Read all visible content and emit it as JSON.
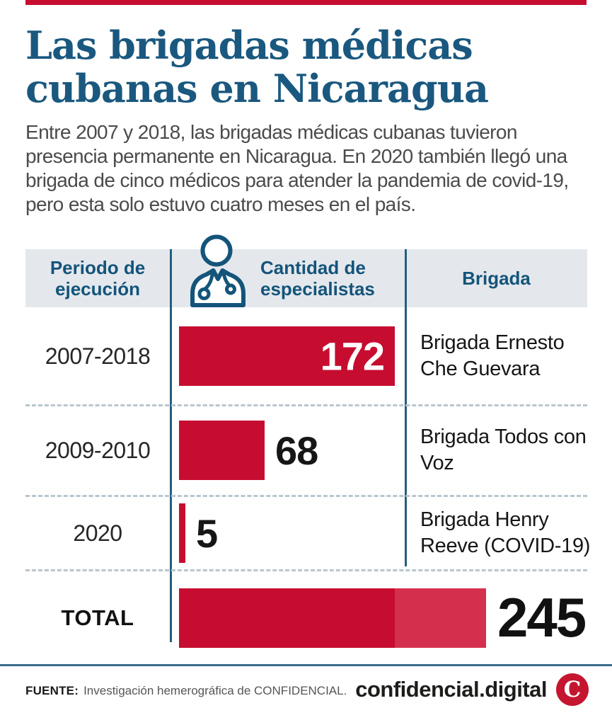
{
  "colors": {
    "red": "#c60d30",
    "red_light": "#d4304e",
    "teal": "#14547a",
    "header_bg": "#e4e8ed",
    "divider_teal": "#235e80",
    "dashed_separator": "#b9c6ce"
  },
  "header": {
    "title_lines": [
      "Las brigadas médicas",
      "cubanas en Nicaragua"
    ],
    "intro": "Entre 2007 y 2018, las brigadas médicas cubanas tuvieron presencia permanente en Nicaragua. En 2020 también llegó una brigada de cinco médicos para atender la pandemia de covid-19, pero esta solo estuvo cuatro meses en el país."
  },
  "table": {
    "col_period": "Periodo de ejecución",
    "col_specialists": "Cantidad de especialistas",
    "col_brigade": "Brigada",
    "doctor_icon": "doctor-icon",
    "rows": [
      {
        "period": "2007-2018",
        "value": 172,
        "brigade": "Brigada Ernesto Che Guevara"
      },
      {
        "period": "2009-2010",
        "value": 68,
        "brigade": "Brigada Todos con Voz"
      },
      {
        "period": "2020",
        "value": 5,
        "brigade": "Brigada Henry Reeve (COVID-19)"
      }
    ],
    "total_label": "TOTAL",
    "total_value": 245
  },
  "footer": {
    "source_label": "FUENTE:",
    "source_text": "Investigación hemerográfica de CONFIDENCIAL.",
    "brand": "confidencial.digital",
    "brand_initial": "C"
  },
  "chart_data": {
    "type": "bar",
    "orientation": "horizontal",
    "title": "Las brigadas médicas cubanas en Nicaragua",
    "categories": [
      "2007-2018",
      "2009-2010",
      "2020"
    ],
    "values": [
      172,
      68,
      5
    ],
    "labels": [
      "Brigada Ernesto Che Guevara",
      "Brigada Todos con Voz",
      "Brigada Henry Reeve (COVID-19)"
    ],
    "total": 245,
    "value_axis_label": "Cantidad de especialistas",
    "category_axis_label": "Periodo de ejecución",
    "group_axis_label": "Brigada",
    "bar_color": "#c60d30",
    "total_overflow_color": "#d4304e",
    "grid": false,
    "legend": false
  }
}
